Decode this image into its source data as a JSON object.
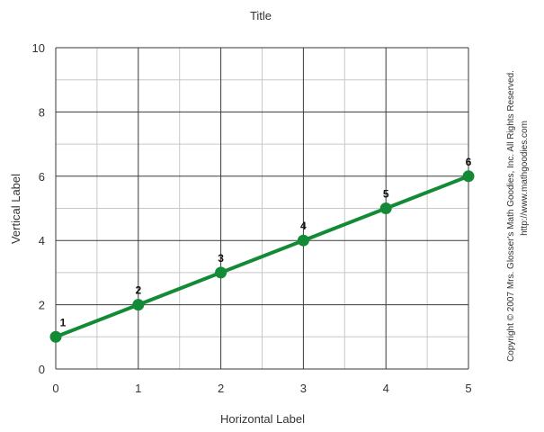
{
  "chart_data": {
    "type": "line",
    "title": "Title",
    "xlabel": "Horizontal Label",
    "ylabel": "Vertical Label",
    "x": [
      0,
      1,
      2,
      3,
      4,
      5
    ],
    "series": [
      {
        "values": [
          1,
          2,
          3,
          4,
          5,
          6
        ],
        "color": "#138a36"
      }
    ],
    "data_labels": [
      "1",
      "2",
      "3",
      "4",
      "5",
      "6"
    ],
    "xlim": [
      0,
      5
    ],
    "ylim": [
      0,
      10
    ],
    "xticks": [
      "0",
      "1",
      "2",
      "3",
      "4",
      "5"
    ],
    "yticks": [
      "0",
      "2",
      "4",
      "6",
      "8",
      "10"
    ],
    "grid": true,
    "legend": "none"
  },
  "copyright": {
    "line1": "Copyright © 2007 Mrs. Glosser's Math Goodies, Inc. All Rights Reserved.",
    "line2": "http://www.mathgoodies.com"
  },
  "colors": {
    "line": "#138a36",
    "grid_major": "#3a3a3a",
    "grid_minor": "#c8c8c8"
  }
}
